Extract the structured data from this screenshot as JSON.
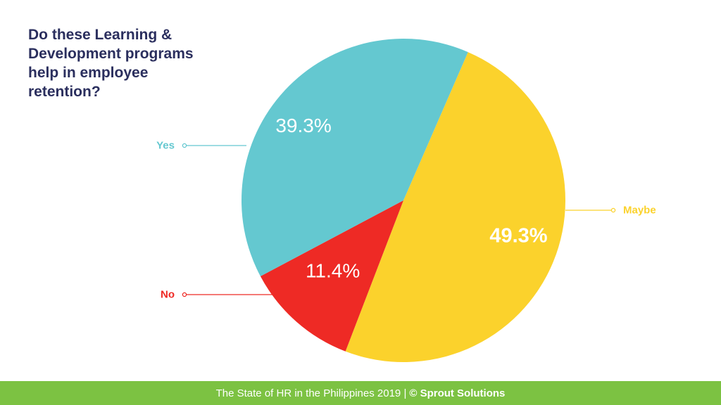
{
  "chart_data": {
    "type": "pie",
    "title_lines": [
      "Do these Learning &",
      "Development programs",
      "help in employee",
      "retention?"
    ],
    "slices": [
      {
        "label": "Maybe",
        "value": 49.3,
        "value_label": "49.3%",
        "color": "#fbd22c"
      },
      {
        "label": "No",
        "value": 11.4,
        "value_label": "11.4%",
        "color": "#ee2a25"
      },
      {
        "label": "Yes",
        "value": 39.3,
        "value_label": "39.3%",
        "color": "#64c8d0"
      }
    ],
    "start_angle_deg": -66.5,
    "direction": "clockwise"
  },
  "footer": {
    "text": "The State of HR in the Philippines 2019 | ",
    "brand": "© Sprout Solutions",
    "color": "#7cc242"
  }
}
